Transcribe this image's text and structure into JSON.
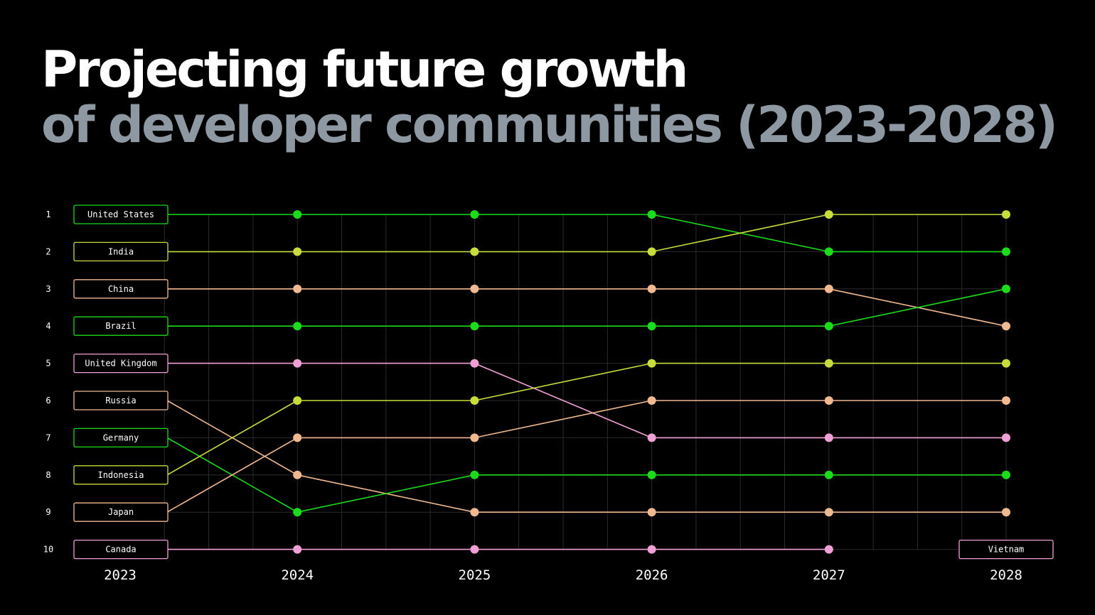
{
  "title": {
    "line1": "Projecting future growth",
    "line2": "of developer communities (2023-2028)"
  },
  "colors": {
    "background": "#000000",
    "grid": "#2a2a2a",
    "title_primary": "#ffffff",
    "title_secondary": "#8e98a3",
    "green": "#1bdc1b",
    "lime": "#c8dc3c",
    "peach": "#f0b98f",
    "pink": "#f1a0d6"
  },
  "chart_data": {
    "type": "line",
    "subtype": "bump",
    "x": [
      "2023",
      "2024",
      "2025",
      "2026",
      "2027",
      "2028"
    ],
    "ranks": [
      "1",
      "2",
      "3",
      "4",
      "5",
      "6",
      "7",
      "8",
      "9",
      "10"
    ],
    "y_inverted": true,
    "ylim": [
      1,
      10
    ],
    "grid": true,
    "series": [
      {
        "name": "United States",
        "color": "#1bdc1b",
        "ranks": [
          1,
          1,
          1,
          1,
          2,
          2
        ]
      },
      {
        "name": "India",
        "color": "#c8dc3c",
        "ranks": [
          2,
          2,
          2,
          2,
          1,
          1
        ]
      },
      {
        "name": "China",
        "color": "#f0b98f",
        "ranks": [
          3,
          3,
          3,
          3,
          3,
          4
        ]
      },
      {
        "name": "Brazil",
        "color": "#1bdc1b",
        "ranks": [
          4,
          4,
          4,
          4,
          4,
          3
        ]
      },
      {
        "name": "United Kingdom",
        "color": "#f1a0d6",
        "ranks": [
          5,
          5,
          5,
          7,
          7,
          7
        ]
      },
      {
        "name": "Russia",
        "color": "#f0b98f",
        "ranks": [
          6,
          8,
          9,
          9,
          9,
          9
        ]
      },
      {
        "name": "Germany",
        "color": "#1bdc1b",
        "ranks": [
          7,
          9,
          8,
          8,
          8,
          8
        ]
      },
      {
        "name": "Indonesia",
        "color": "#c8dc3c",
        "ranks": [
          8,
          6,
          6,
          5,
          5,
          5
        ]
      },
      {
        "name": "Japan",
        "color": "#f0b98f",
        "ranks": [
          9,
          7,
          7,
          6,
          6,
          6
        ]
      },
      {
        "name": "Canada",
        "color": "#f1a0d6",
        "ranks": [
          10,
          10,
          10,
          10,
          10,
          null
        ]
      },
      {
        "name": "Vietnam",
        "color": "#f1a0d6",
        "ranks": [
          null,
          null,
          null,
          null,
          null,
          10
        ]
      }
    ],
    "end_labels": [
      {
        "name": "Vietnam",
        "year": "2028",
        "rank": 10
      }
    ]
  }
}
